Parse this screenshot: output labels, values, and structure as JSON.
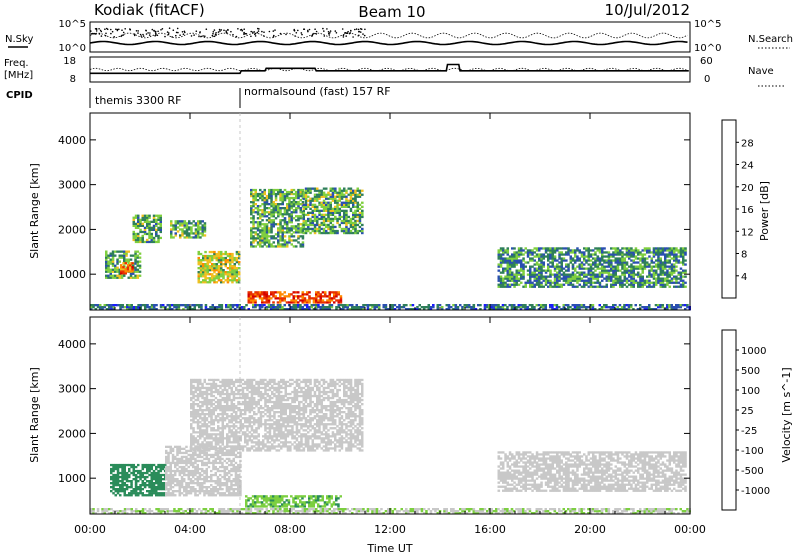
{
  "header": {
    "station": "Kodiak (fitACF)",
    "beam": "Beam 10",
    "date": "10/Jul/2012"
  },
  "summary_panels": {
    "nsky_label": "N.Sky",
    "nsearch_label": "N.Search",
    "nsky_ticks": [
      "10^5",
      "10^0"
    ],
    "nsearch_ticks": [
      "10^5",
      "10^0"
    ],
    "freq_label_1": "Freq.",
    "freq_label_2": "[MHz]",
    "freq_ticks": [
      "18",
      "8"
    ],
    "nave_label": "Nave",
    "nave_ticks": [
      "60",
      "0"
    ],
    "cpid_label": "CPID",
    "cpid_segments": [
      {
        "name": "themis 3300 RF",
        "start_hour": 0,
        "end_hour": 6
      },
      {
        "name": "normalsound (fast) 157 RF",
        "start_hour": 6,
        "end_hour": 24
      }
    ]
  },
  "axes": {
    "time_ticks": [
      "00:00",
      "04:00",
      "08:00",
      "12:00",
      "16:00",
      "20:00",
      "00:00"
    ],
    "time_tick_hours": [
      0,
      4,
      8,
      12,
      16,
      20,
      24
    ],
    "xlabel": "Time UT",
    "ylabel": "Slant Range [km]",
    "range_ticks": [
      "1000",
      "2000",
      "3000",
      "4000"
    ],
    "range_tick_values": [
      1000,
      2000,
      3000,
      4000
    ],
    "xlim": [
      0,
      24
    ],
    "ylim": [
      200,
      4600
    ]
  },
  "power_colorbar": {
    "label": "Power [dB]",
    "tick_labels": [
      "4",
      "8",
      "12",
      "16",
      "20",
      "24",
      "28"
    ],
    "colors": [
      "#1a1aff",
      "#2a4fb0",
      "#2f7f5a",
      "#7fcf3f",
      "#f0c020",
      "#ff8a00",
      "#e83000",
      "#d40000"
    ]
  },
  "velocity_colorbar": {
    "label": "Velocity [m s^-1]",
    "tick_labels": [
      "1000",
      "500",
      "100",
      "25",
      "-25",
      "-100",
      "-500",
      "-1000"
    ],
    "colors": [
      "#2040c0",
      "#3070b0",
      "#2a8c5a",
      "#7ccf40",
      "#c8c8c8",
      "#f0a020",
      "#ff7a00",
      "#e83000",
      "#ff0000"
    ]
  },
  "chart_data": {
    "type": "heatmap",
    "title": "Kodiak (fitACF) Beam 10 10/Jul/2012",
    "xlabel": "Time UT",
    "ylabel": "Slant Range [km]",
    "xlim": [
      0,
      24
    ],
    "ylim": [
      200,
      4600
    ],
    "power_regions": [
      {
        "t0": 0,
        "t1": 24,
        "r0": 200,
        "r1": 330,
        "level": 8
      },
      {
        "t0": 0.6,
        "t1": 2.0,
        "r0": 900,
        "r1": 1500,
        "level": 12
      },
      {
        "t0": 1.2,
        "t1": 1.7,
        "r0": 1000,
        "r1": 1250,
        "level": 24
      },
      {
        "t0": 1.7,
        "t1": 2.8,
        "r0": 1700,
        "r1": 2300,
        "level": 12
      },
      {
        "t0": 3.2,
        "t1": 4.6,
        "r0": 1800,
        "r1": 2200,
        "level": 12
      },
      {
        "t0": 4.3,
        "t1": 6.0,
        "r0": 800,
        "r1": 1500,
        "level": 16
      },
      {
        "t0": 6.3,
        "t1": 10.0,
        "r0": 350,
        "r1": 600,
        "level": 26
      },
      {
        "t0": 6.4,
        "t1": 8.5,
        "r0": 1600,
        "r1": 2900,
        "level": 12
      },
      {
        "t0": 8.5,
        "t1": 10.9,
        "r0": 1900,
        "r1": 2900,
        "level": 12
      },
      {
        "t0": 16.3,
        "t1": 23.8,
        "r0": 700,
        "r1": 1600,
        "level": 10
      }
    ],
    "velocity_regions": [
      {
        "t0": 0,
        "t1": 24,
        "r0": 200,
        "r1": 330,
        "v": 20
      },
      {
        "t0": 0.8,
        "t1": 3.0,
        "r0": 600,
        "r1": 1300,
        "v": 120
      },
      {
        "t0": 3.0,
        "t1": 6.0,
        "r0": 600,
        "r1": 1700,
        "v": 0
      },
      {
        "t0": 6.2,
        "t1": 10.0,
        "r0": 350,
        "r1": 600,
        "v": 90
      },
      {
        "t0": 4.0,
        "t1": 10.9,
        "r0": 1600,
        "r1": 3200,
        "v": 0
      },
      {
        "t0": 16.3,
        "t1": 23.8,
        "r0": 700,
        "r1": 1600,
        "v": 0
      }
    ]
  }
}
